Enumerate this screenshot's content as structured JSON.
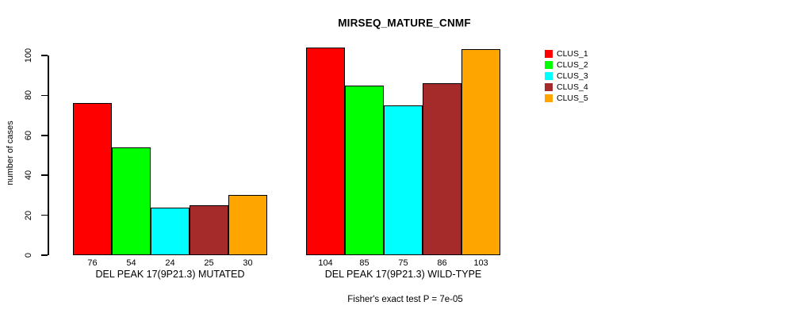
{
  "chart_data": {
    "type": "bar",
    "title": "MIRSEQ_MATURE_CNMF",
    "ylabel": "number of cases",
    "xlabel": "",
    "annotation": "Fisher's exact test P = 7e-05",
    "yticks": [
      0,
      20,
      40,
      60,
      80,
      100
    ],
    "ylim": [
      0,
      104
    ],
    "grid": false,
    "legend_position": "top-right",
    "categories": [
      "DEL PEAK 17(9P21.3) MUTATED",
      "DEL PEAK 17(9P21.3) WILD-TYPE"
    ],
    "series": [
      {
        "name": "CLUS_1",
        "color": "#FF0000",
        "values": [
          76,
          104
        ]
      },
      {
        "name": "CLUS_2",
        "color": "#00FF00",
        "values": [
          54,
          85
        ]
      },
      {
        "name": "CLUS_3",
        "color": "#00FFFF",
        "values": [
          24,
          75
        ]
      },
      {
        "name": "CLUS_4",
        "color": "#A52A2A",
        "values": [
          25,
          86
        ]
      },
      {
        "name": "CLUS_5",
        "color": "#FFA500",
        "values": [
          30,
          103
        ]
      }
    ],
    "bar_value_labels": true
  }
}
